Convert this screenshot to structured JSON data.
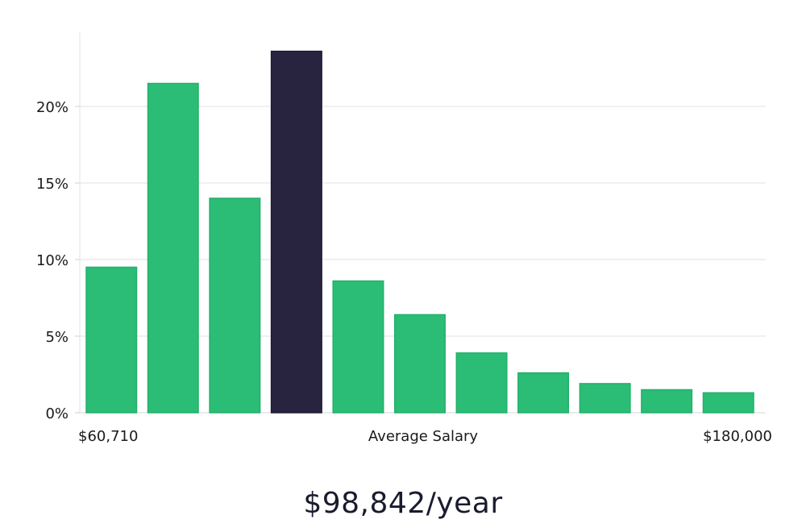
{
  "chart_data": {
    "type": "bar",
    "title": "",
    "xlabel": "Average Salary",
    "ylabel": "",
    "x_range_labels": {
      "min": "$60,710",
      "max": "$180,000"
    },
    "y_ticks": [
      "0%",
      "5%",
      "10%",
      "15%",
      "20%"
    ],
    "y_tick_values": [
      0,
      5,
      10,
      15,
      20
    ],
    "ylim": [
      0,
      25
    ],
    "grid": "horizontal",
    "values": [
      9.5,
      21.5,
      14.0,
      23.6,
      8.6,
      6.4,
      3.9,
      2.6,
      1.9,
      1.5,
      1.3
    ],
    "highlight_index": 3,
    "colors": {
      "bar": "#2bbd75",
      "highlight": "#28243f",
      "grid": "#e1e1e1"
    }
  },
  "summary": {
    "salary_text": "$98,842/year"
  }
}
